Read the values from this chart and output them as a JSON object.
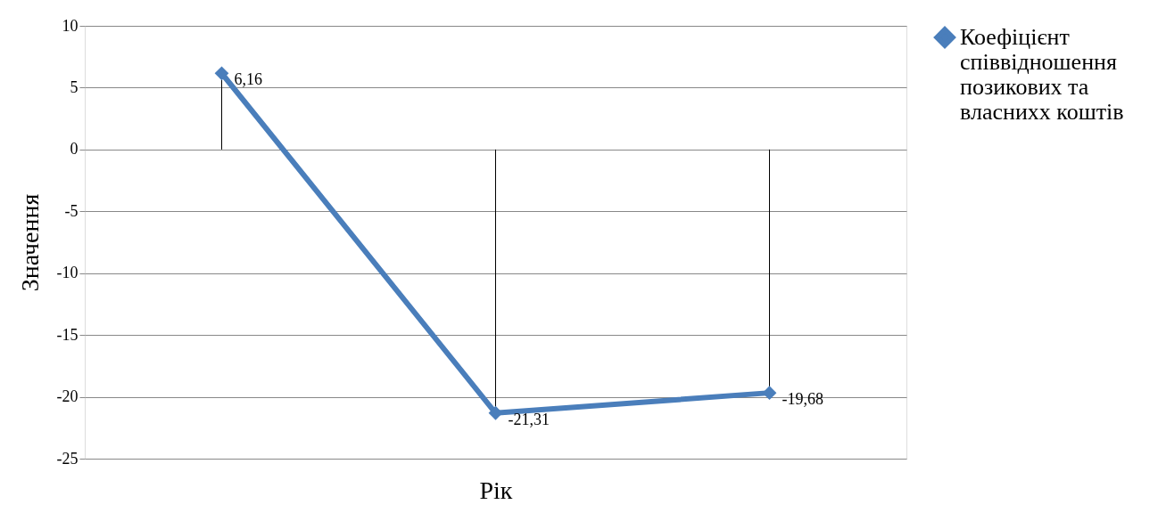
{
  "chart_data": {
    "type": "line",
    "xlabel": "Рік",
    "ylabel": "Значення",
    "categories": [
      null,
      null,
      null
    ],
    "series": [
      {
        "name": "Коефіцієнт співвідношення позикових та власнихх коштів",
        "color": "#4a7ebb",
        "values": [
          6.16,
          -21.31,
          -19.68
        ],
        "errors": [
          [
            0,
            6.16
          ],
          [
            -21.31,
            0
          ],
          [
            -19.68,
            0
          ]
        ],
        "value_labels": [
          "6,16",
          "-21,31",
          "-19,68"
        ]
      }
    ],
    "ylim": [
      -25,
      10
    ],
    "yticks": [
      -25,
      -20,
      -15,
      -10,
      -5,
      0,
      5,
      10
    ],
    "grid": "y",
    "legend": "right",
    "marker": "diamond",
    "line_style": "solid"
  }
}
